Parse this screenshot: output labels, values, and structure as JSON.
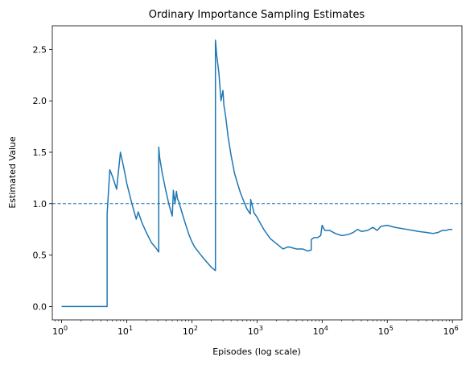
{
  "chart_data": {
    "type": "line",
    "title": "Ordinary Importance Sampling Estimates",
    "xlabel": "Episodes (log scale)",
    "ylabel": "Estimated Value",
    "x_scale": "log",
    "xlim": [
      0.72,
      1400000
    ],
    "ylim": [
      -0.13,
      2.73
    ],
    "grid": false,
    "legend": "none",
    "line_color": "#1f77b4",
    "x_ticks": [
      {
        "value": 1,
        "base": "10",
        "exp": "0"
      },
      {
        "value": 10,
        "base": "10",
        "exp": "1"
      },
      {
        "value": 100,
        "base": "10",
        "exp": "2"
      },
      {
        "value": 1000,
        "base": "10",
        "exp": "3"
      },
      {
        "value": 10000,
        "base": "10",
        "exp": "4"
      },
      {
        "value": 100000,
        "base": "10",
        "exp": "5"
      },
      {
        "value": 1000000,
        "base": "10",
        "exp": "6"
      }
    ],
    "y_ticks": [
      {
        "value": 0.0,
        "label": "0.0"
      },
      {
        "value": 0.5,
        "label": "0.5"
      },
      {
        "value": 1.0,
        "label": "1.0"
      },
      {
        "value": 1.5,
        "label": "1.5"
      },
      {
        "value": 2.0,
        "label": "2.0"
      },
      {
        "value": 2.5,
        "label": "2.5"
      }
    ],
    "reference_line": {
      "y": 1.0,
      "style": "dashed"
    },
    "series": [
      {
        "x": [
          1,
          2,
          3,
          4,
          5,
          5.0,
          5.5,
          6,
          7,
          8,
          9,
          10,
          12,
          14,
          15,
          17,
          20,
          24,
          28,
          31,
          31,
          32,
          35,
          40,
          45,
          50,
          52,
          55,
          58,
          60,
          63,
          70,
          80,
          90,
          100,
          110,
          130,
          160,
          200,
          230,
          230,
          240,
          260,
          280,
          300,
          310,
          330,
          360,
          400,
          450,
          500,
          560,
          630,
          700,
          790,
          800,
          900,
          1000,
          1100,
          1300,
          1600,
          2000,
          2500,
          3000,
          3500,
          4000,
          5000,
          6000,
          6800,
          6800,
          7500,
          8500,
          9500,
          10000,
          11000,
          13000,
          16000,
          20000,
          25000,
          30000,
          35000,
          40000,
          50000,
          60000,
          70000,
          80000,
          100000,
          130000,
          160000,
          200000,
          250000,
          300000,
          400000,
          500000,
          600000,
          700000,
          800000,
          900000,
          1000000
        ],
        "y": [
          0.0,
          0.0,
          0.0,
          0.0,
          0.0,
          0.9,
          1.33,
          1.27,
          1.14,
          1.5,
          1.35,
          1.2,
          1.0,
          0.85,
          0.92,
          0.82,
          0.72,
          0.62,
          0.57,
          0.53,
          1.55,
          1.45,
          1.3,
          1.12,
          0.98,
          0.88,
          1.13,
          1.0,
          1.12,
          1.05,
          1.02,
          0.92,
          0.8,
          0.7,
          0.63,
          0.58,
          0.52,
          0.45,
          0.38,
          0.35,
          2.59,
          2.45,
          2.27,
          2.0,
          2.1,
          1.96,
          1.85,
          1.65,
          1.47,
          1.3,
          1.2,
          1.1,
          1.02,
          0.95,
          0.9,
          1.04,
          0.91,
          0.87,
          0.82,
          0.74,
          0.66,
          0.61,
          0.56,
          0.58,
          0.57,
          0.56,
          0.56,
          0.54,
          0.55,
          0.65,
          0.67,
          0.67,
          0.69,
          0.79,
          0.74,
          0.74,
          0.71,
          0.69,
          0.7,
          0.72,
          0.75,
          0.73,
          0.74,
          0.77,
          0.74,
          0.78,
          0.79,
          0.77,
          0.76,
          0.75,
          0.74,
          0.73,
          0.72,
          0.71,
          0.72,
          0.74,
          0.74,
          0.75,
          0.75
        ]
      }
    ]
  }
}
